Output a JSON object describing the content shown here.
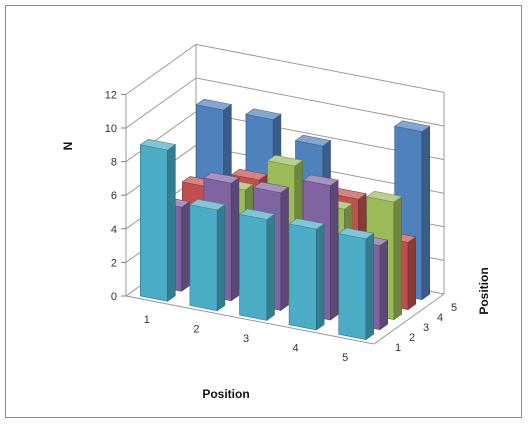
{
  "chart_data": {
    "type": "bar3d",
    "title": "",
    "xlabel": "Position",
    "ylabel": "Position",
    "zlabel": "N",
    "x_categories": [
      "1",
      "2",
      "3",
      "4",
      "5"
    ],
    "y_categories": [
      "1",
      "2",
      "3",
      "4",
      "5"
    ],
    "zlim": [
      0,
      12
    ],
    "z_ticks": [
      "0",
      "2",
      "4",
      "6",
      "8",
      "10",
      "12"
    ],
    "grid": true,
    "legend": "none",
    "values": [
      [
        9,
        6,
        6,
        6,
        6
      ],
      [
        5,
        7,
        7,
        8,
        5
      ],
      [
        4,
        6,
        8,
        6,
        7
      ],
      [
        5,
        6,
        4,
        6,
        4
      ],
      [
        9,
        9,
        8,
        4,
        10
      ]
    ],
    "series_colors": [
      "#4F81BD",
      "#C0504D",
      "#9BBB59",
      "#8064A2",
      "#4BACC6"
    ]
  }
}
